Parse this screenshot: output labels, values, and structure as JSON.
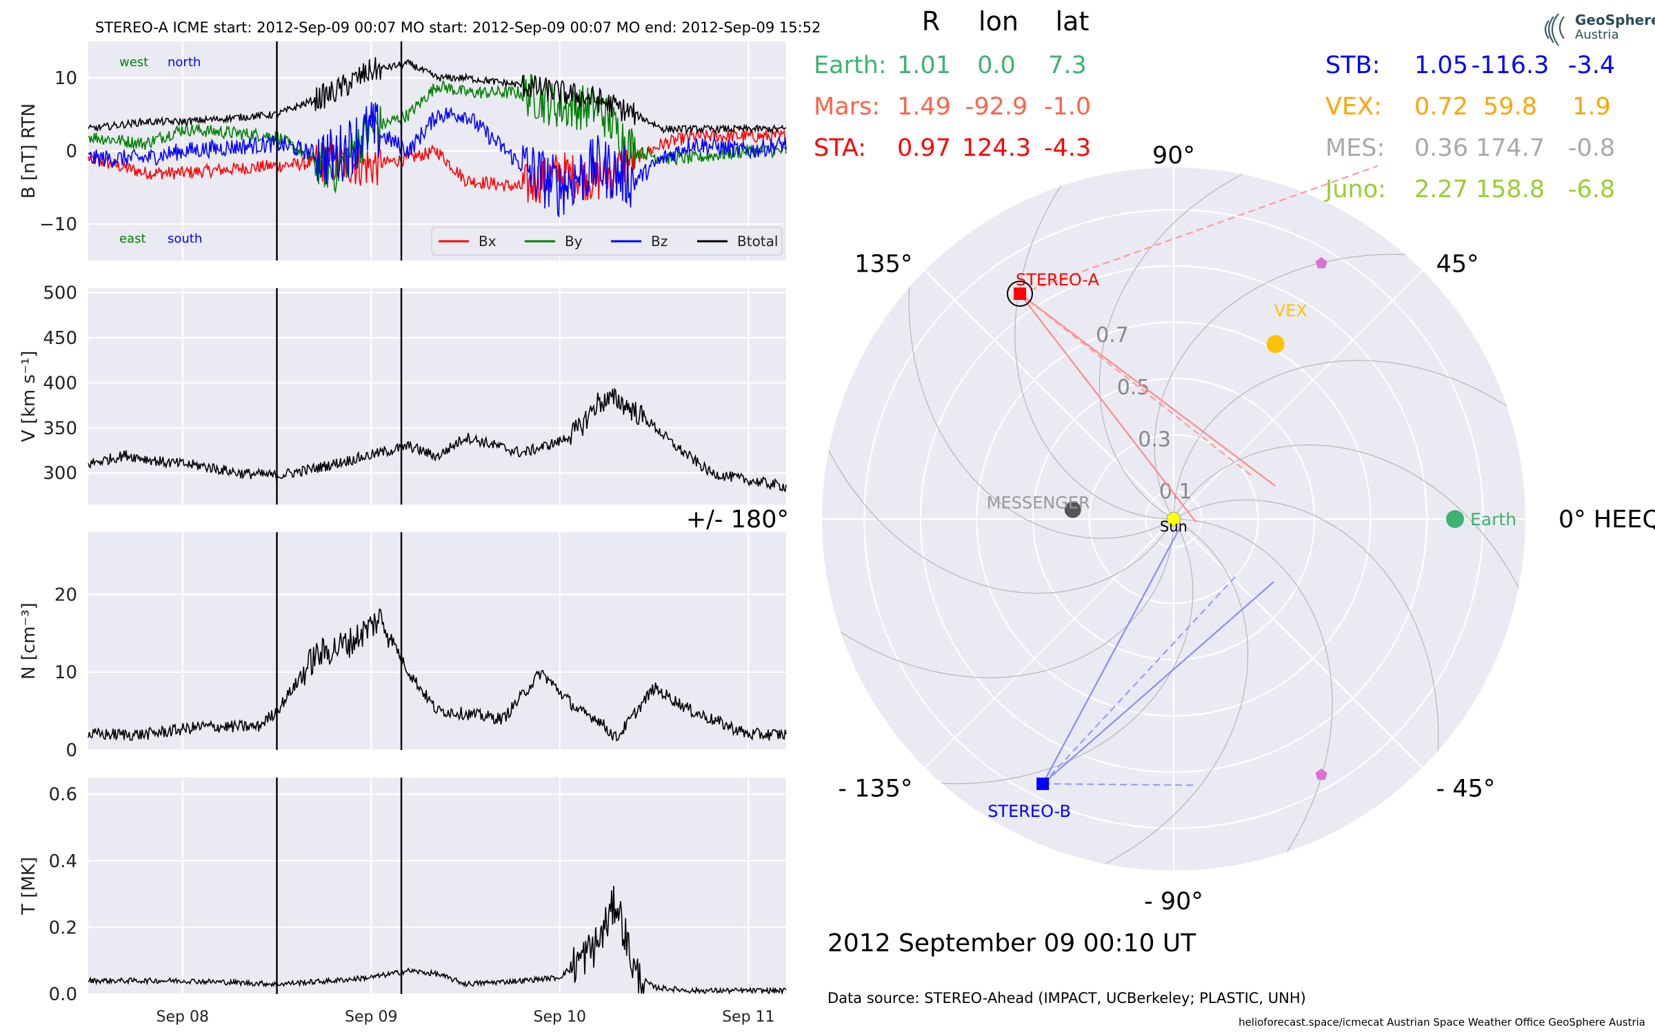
{
  "header": {
    "text": "STEREO-A    ICME start: 2012-Sep-09 00:07    MO start: 2012-Sep-09 00:07    MO end: 2012-Sep-09 15:52"
  },
  "footer": {
    "datetime": "2012 September 09  00:10 UT",
    "source": "Data source: STEREO-Ahead (IMPACT, UCBerkeley; PLASTIC, UNH)",
    "credits": "helioforecast.space/icmecat   Austrian Space Weather Office   GeoSphere Austria"
  },
  "logo": {
    "line1": "GeoSphere",
    "line2": "Austria",
    "icon": "geosphere-swirl-logo"
  },
  "colors": {
    "bx": "#ff0000",
    "by": "#008000",
    "bz": "#0000ff",
    "bt": "#000000",
    "earth": "#3cb371",
    "mars": "#ff6347",
    "sta": "#ff0000",
    "stb": "#0000ff",
    "vex": "#ffa500",
    "mes": "#a9a9a9",
    "juno": "#9acd32",
    "panel_bg": "#eaeaf2"
  },
  "chart_data": [
    {
      "id": "B",
      "type": "line",
      "ylabel": "B [nT] RTN",
      "ylim": [
        -15,
        15
      ],
      "yticks": [
        "10",
        "0",
        "−10"
      ],
      "annotations": {
        "top_left": "west",
        "top_right": "north",
        "bottom_left": "east",
        "bottom_right": "south"
      },
      "legend": [
        "Bx",
        "By",
        "Bz",
        "Btotal"
      ],
      "legend_position": "lower right",
      "series": [
        {
          "name": "Bx",
          "t": [
            0,
            0.3,
            0.5,
            1.0,
            1.3,
            1.5,
            1.7,
            1.85,
            2.0,
            2.3,
            2.5,
            2.7,
            2.9,
            3.05,
            3.2,
            3.5,
            3.7
          ],
          "values": [
            -1,
            -3,
            -3,
            -2,
            -1.5,
            -2,
            -1,
            0,
            -4,
            -5,
            -3,
            -4,
            -1,
            1,
            2,
            2,
            2
          ]
        },
        {
          "name": "By",
          "t": [
            0,
            0.3,
            0.5,
            1.0,
            1.3,
            1.5,
            1.7,
            1.85,
            2.0,
            2.3,
            2.5,
            2.7,
            2.9,
            3.05,
            3.2,
            3.5,
            3.7
          ],
          "values": [
            2,
            1,
            3,
            2,
            -3,
            3,
            5,
            9,
            8,
            8,
            6,
            6,
            0,
            -1,
            -1,
            0,
            0
          ]
        },
        {
          "name": "Bz",
          "t": [
            0,
            0.3,
            0.5,
            1.0,
            1.3,
            1.5,
            1.7,
            1.85,
            2.0,
            2.3,
            2.5,
            2.7,
            2.9,
            3.05,
            3.2,
            3.5,
            3.7
          ],
          "values": [
            -1,
            -1,
            0,
            1,
            -1,
            3,
            0,
            5,
            5,
            -2,
            -5,
            -2,
            -4,
            -1,
            1,
            0,
            1
          ]
        },
        {
          "name": "Btotal",
          "t": [
            0,
            0.3,
            0.5,
            1.0,
            1.3,
            1.5,
            1.7,
            1.85,
            2.0,
            2.3,
            2.5,
            2.7,
            2.9,
            3.05,
            3.2,
            3.5,
            3.7
          ],
          "values": [
            3,
            4,
            4,
            5,
            8,
            11,
            12,
            10,
            10,
            9,
            8,
            7,
            5,
            3,
            3,
            3,
            3
          ]
        }
      ]
    },
    {
      "id": "V",
      "type": "line",
      "ylabel": "V [km s⁻¹]",
      "ylim": [
        265,
        505
      ],
      "yticks": [
        "500",
        "450",
        "400",
        "350",
        "300"
      ],
      "series": [
        {
          "name": "V",
          "t": [
            0,
            0.2,
            0.4,
            0.6,
            0.8,
            1.0,
            1.2,
            1.5,
            1.7,
            1.85,
            2.0,
            2.3,
            2.5,
            2.6,
            2.7,
            2.8,
            2.9,
            3.0,
            3.1,
            3.3,
            3.5,
            3.7
          ],
          "values": [
            310,
            320,
            312,
            308,
            300,
            297,
            305,
            320,
            330,
            318,
            340,
            322,
            335,
            348,
            378,
            382,
            368,
            352,
            332,
            300,
            292,
            285
          ]
        }
      ]
    },
    {
      "id": "N",
      "type": "line",
      "ylabel": "N [cm⁻³]",
      "ylim": [
        0,
        28
      ],
      "yticks": [
        "20",
        "10",
        "0"
      ],
      "series": [
        {
          "name": "N",
          "t": [
            0,
            0.3,
            0.6,
            0.9,
            1.0,
            1.2,
            1.4,
            1.55,
            1.7,
            1.85,
            1.9,
            2.2,
            2.4,
            2.6,
            2.7,
            2.8,
            3.0,
            3.2,
            3.5,
            3.7
          ],
          "values": [
            2,
            2,
            3,
            3,
            5,
            12,
            14,
            17,
            10,
            5,
            5,
            4,
            10,
            5,
            4,
            1.5,
            8,
            5,
            2,
            2
          ]
        }
      ]
    },
    {
      "id": "T",
      "type": "line",
      "ylabel": "T [MK]",
      "ylim": [
        0,
        0.65
      ],
      "yticks": [
        "0.6",
        "0.4",
        "0.2",
        "0.0"
      ],
      "xtick_labels": [
        "Sep 08",
        "Sep 09",
        "Sep 10",
        "Sep 11"
      ],
      "series": [
        {
          "name": "T",
          "t": [
            0,
            0.5,
            1.0,
            1.3,
            1.5,
            1.7,
            1.85,
            2.0,
            2.3,
            2.5,
            2.6,
            2.7,
            2.8,
            2.9,
            3.0,
            3.2,
            3.5,
            3.7
          ],
          "values": [
            0.04,
            0.04,
            0.03,
            0.04,
            0.05,
            0.07,
            0.06,
            0.03,
            0.04,
            0.05,
            0.1,
            0.15,
            0.28,
            0.06,
            0.02,
            0.01,
            0.01,
            0.01
          ]
        }
      ]
    }
  ],
  "event_markers": {
    "labels": [
      "ICME start",
      "MO end"
    ],
    "t": [
      1.0,
      1.66
    ]
  },
  "positions_table": {
    "headers": [
      "R",
      "lon",
      "lat"
    ],
    "left": [
      {
        "name": "Earth:",
        "R": "1.01",
        "lon": "0.0",
        "lat": "7.3",
        "color": "#3cb371"
      },
      {
        "name": "Mars:",
        "R": "1.49",
        "lon": "-92.9",
        "lat": "-1.0",
        "color": "#ff6347"
      },
      {
        "name": "STA:",
        "R": "0.97",
        "lon": "124.3",
        "lat": "-4.3",
        "color": "#ff0000"
      }
    ],
    "right": [
      {
        "name": "STB:",
        "R": "1.05",
        "lon": "-116.3",
        "lat": "-3.4",
        "color": "#0000ff"
      },
      {
        "name": "VEX:",
        "R": "0.72",
        "lon": "59.8",
        "lat": "1.9",
        "color": "#ffa500"
      },
      {
        "name": "MES:",
        "R": "0.36",
        "lon": "174.7",
        "lat": "-0.8",
        "color": "#a9a9a9"
      },
      {
        "name": "Juno:",
        "R": "2.27",
        "lon": "158.8",
        "lat": "-6.8",
        "color": "#9acd32"
      }
    ]
  },
  "polar_plot": {
    "angle_labels": [
      "0° HEEQ",
      "45°",
      "90°",
      "135°",
      "+/- 180°",
      "- 135°",
      "- 90°",
      "- 45°"
    ],
    "angle_values": [
      0,
      45,
      90,
      135,
      180,
      -135,
      -90,
      -45
    ],
    "r_ticks": [
      "0.1",
      "0.3",
      "0.5",
      "0.7"
    ],
    "r_tick_values": [
      0.1,
      0.3,
      0.5,
      0.7
    ],
    "r_max": 1.25,
    "bodies": [
      {
        "label": "Earth",
        "r": 1.0,
        "lon": 0.0,
        "color": "#3cb371",
        "marker": "circle"
      },
      {
        "label": "VEX",
        "r": 0.72,
        "lon": 59.8,
        "color": "#ffc107",
        "marker": "circle"
      },
      {
        "label": "MESSENGER",
        "r": 0.36,
        "lon": 174.7,
        "color": "#555555",
        "marker": "circle"
      },
      {
        "label": "STEREO-A",
        "r": 0.97,
        "lon": 124.3,
        "color": "#ff0000",
        "marker": "square"
      },
      {
        "label": "STEREO-B",
        "r": 1.05,
        "lon": -116.3,
        "color": "#0000ff",
        "marker": "square"
      },
      {
        "label": "Sun",
        "r": 0,
        "lon": 0,
        "color": "#ffff00",
        "marker": "circle"
      }
    ],
    "unlabeled_markers": [
      {
        "r": 1.05,
        "lon": 60,
        "color": "#da70d6",
        "marker": "pentagon"
      },
      {
        "r": 1.05,
        "lon": -60,
        "color": "#da70d6",
        "marker": "pentagon"
      }
    ]
  }
}
